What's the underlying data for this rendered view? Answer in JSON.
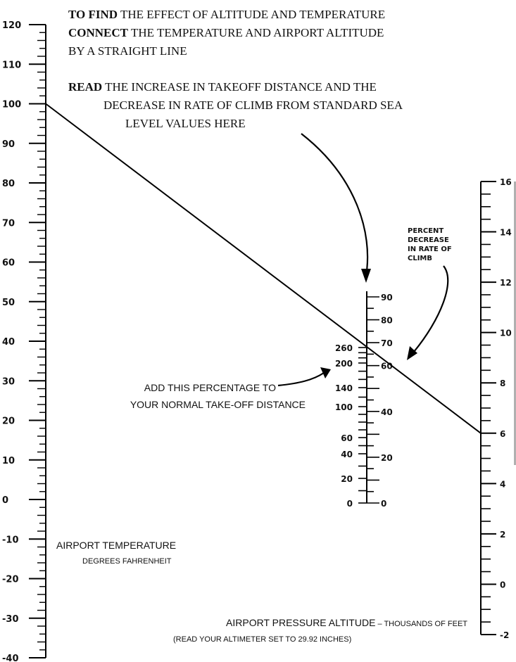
{
  "instructions": {
    "line1_bold": "TO FIND",
    "line1_rest": " THE EFFECT OF ALTITUDE AND TEMPERATURE",
    "line2_bold": "CONNECT",
    "line2_rest": " THE TEMPERATURE AND AIRPORT ALTITUDE",
    "line3": "BY A STRAIGHT LINE",
    "read_bold": "READ",
    "read_rest": " THE INCREASE IN TAKEOFF DISTANCE AND THE",
    "read_line2": "DECREASE IN RATE OF CLIMB FROM STANDARD SEA",
    "read_line3": "LEVEL VALUES HERE"
  },
  "labels": {
    "percent_decrease": [
      "PERCENT",
      "DECREASE",
      "IN RATE OF",
      "CLIMB"
    ],
    "add_percentage_1": "ADD THIS PERCENTAGE TO",
    "add_percentage_2": "YOUR NORMAL TAKE-OFF DISTANCE",
    "temperature_title": "AIRPORT TEMPERATURE",
    "temperature_units": "DEGREES FAHRENHEIT",
    "altitude_title": "AIRPORT PRESSURE ALTITUDE",
    "altitude_units": " – THOUSANDS OF FEET",
    "altimeter_note": "(READ YOUR ALTIMETER SET TO 29.92 INCHES)"
  },
  "scales": {
    "temperature": {
      "min": -40,
      "max": 120,
      "labels": [
        "120",
        "110",
        "100",
        "90",
        "80",
        "70",
        "60",
        "50",
        "40",
        "30",
        "20",
        "10",
        "0",
        "-10",
        "-20",
        "-30",
        "-40"
      ]
    },
    "pressure_altitude": {
      "min": -2,
      "max": 16,
      "labels": [
        "16",
        "14",
        "12",
        "10",
        "8",
        "6",
        "4",
        "2",
        "0",
        "-2"
      ]
    },
    "takeoff_distance_increase": {
      "labels": [
        "260",
        "200",
        "140",
        "100",
        "60",
        "40",
        "20",
        "0"
      ]
    },
    "rate_of_climb_decrease": {
      "labels": [
        "90",
        "80",
        "70",
        "60",
        "40",
        "20",
        "0"
      ]
    }
  },
  "example_line": {
    "temperature": 100,
    "pressure_altitude": 6
  }
}
